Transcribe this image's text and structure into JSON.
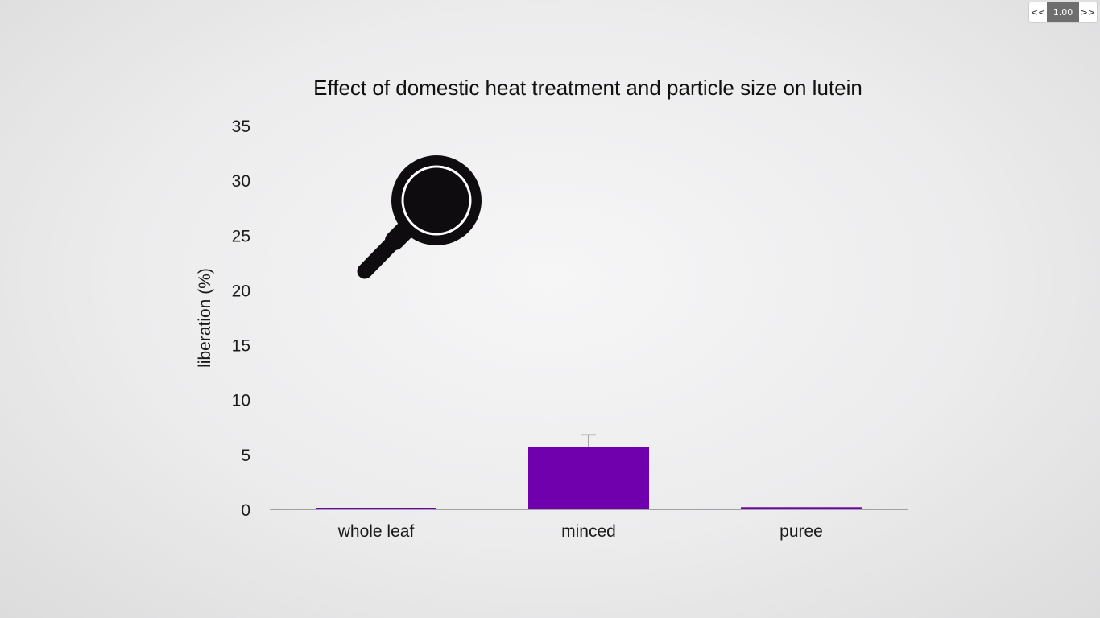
{
  "player": {
    "prev_label": "<<",
    "speed": "1.00",
    "next_label": ">>"
  },
  "chart_data": {
    "type": "bar",
    "title": "Effect of domestic heat treatment and particle size on lutein",
    "xlabel": "",
    "ylabel": "liberation (%)",
    "categories": [
      "whole leaf",
      "minced",
      "puree"
    ],
    "values": [
      0.1,
      5.7,
      0.2
    ],
    "error_upper": [
      0,
      6.8,
      0
    ],
    "ylim": [
      0,
      35
    ],
    "yticks": [
      0,
      5,
      10,
      15,
      20,
      25,
      30,
      35
    ],
    "bar_color": "#7000ad",
    "grid": false,
    "annotation_icon": "magnifying-glass-icon"
  }
}
